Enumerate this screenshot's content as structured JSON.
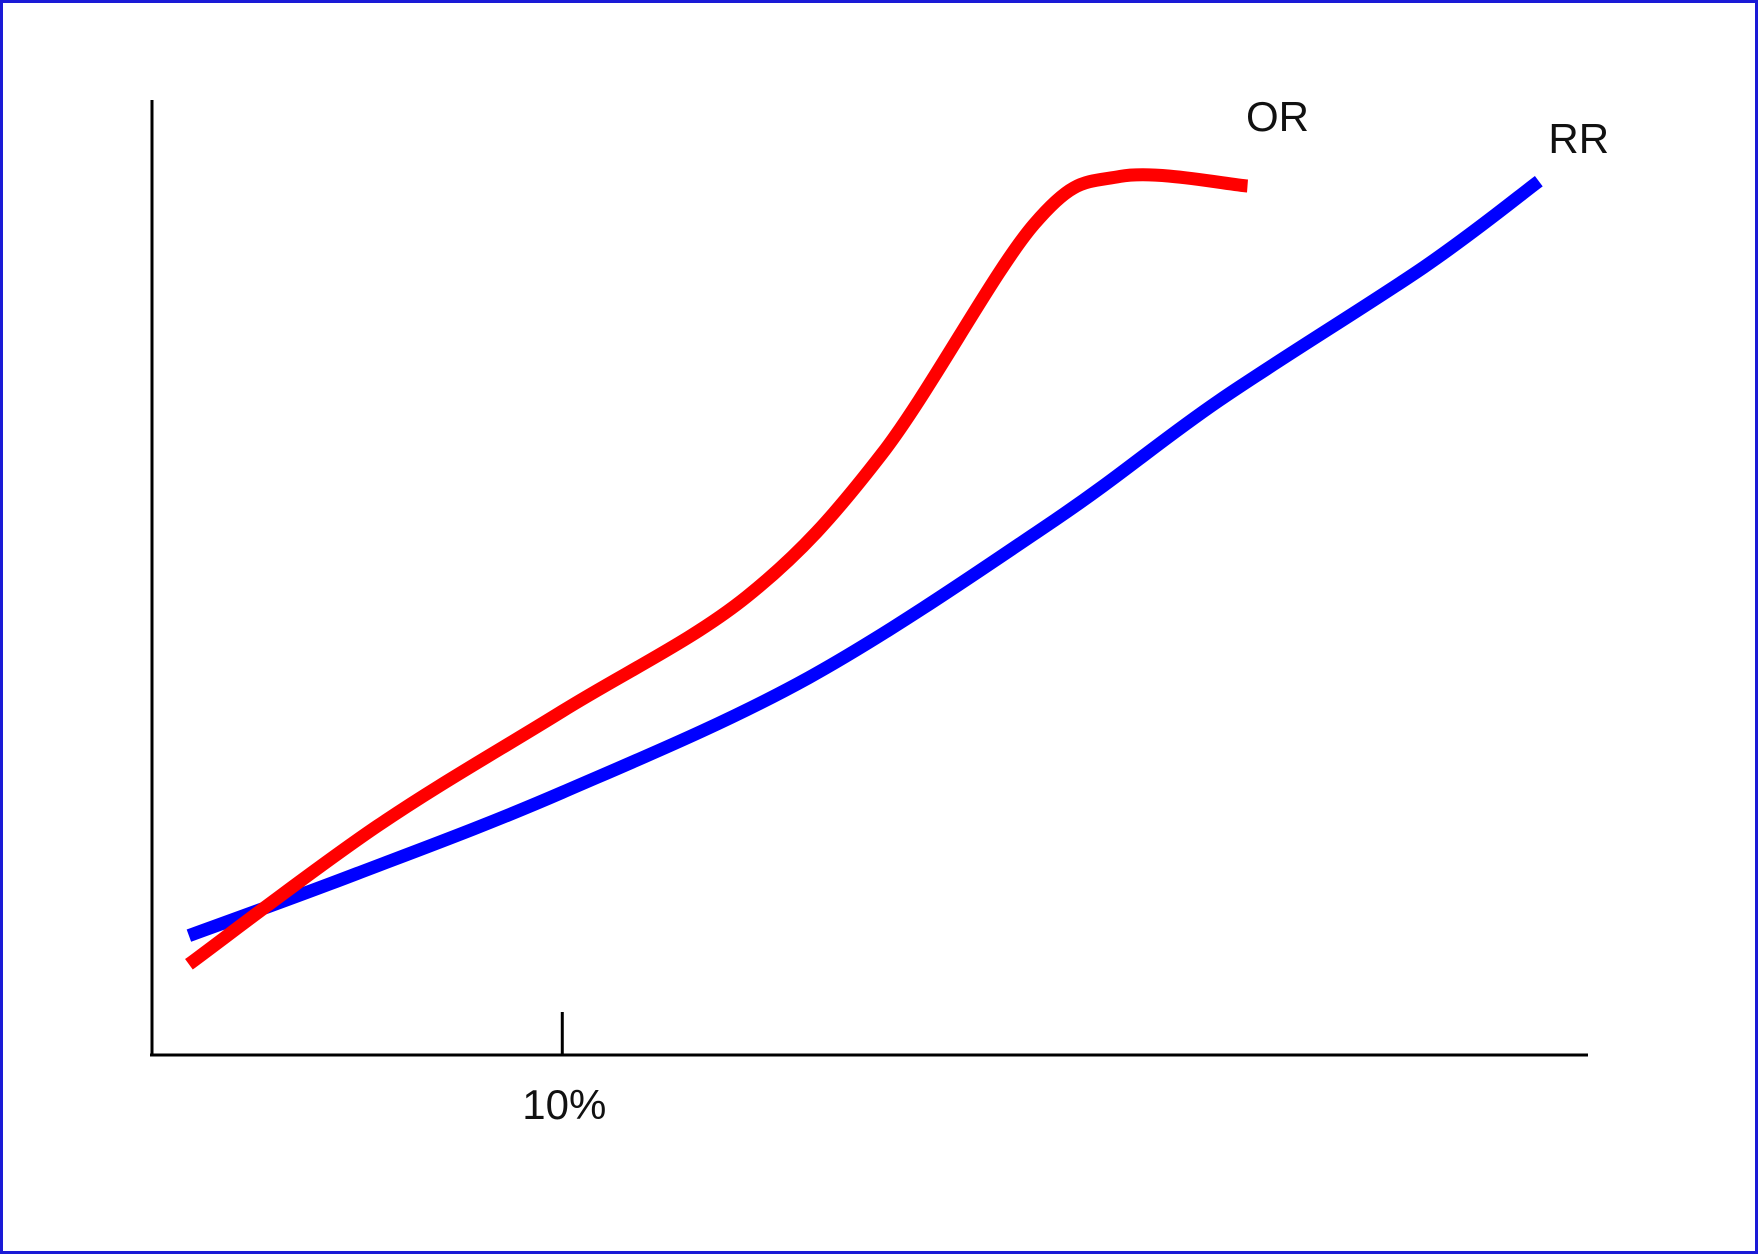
{
  "chart_data": {
    "type": "line",
    "title": "",
    "xlabel": "",
    "ylabel": "",
    "grid": false,
    "x_tick": {
      "value": 10,
      "label": "10%"
    },
    "xlim": [
      0,
      35
    ],
    "ylim": [
      0,
      10
    ],
    "series": [
      {
        "name": "OR",
        "color": "#ff0000",
        "x": [
          0.9,
          5.5,
          10,
          14.5,
          17.8,
          21.5,
          23.6,
          26.7
        ],
        "y": [
          0.95,
          2.4,
          3.6,
          4.8,
          6.3,
          8.7,
          9.2,
          9.1
        ]
      },
      {
        "name": "RR",
        "color": "#0000ff",
        "x": [
          0.9,
          5,
          10,
          16,
          22,
          26,
          31,
          33.8
        ],
        "y": [
          1.25,
          1.9,
          2.75,
          3.95,
          5.6,
          6.85,
          8.25,
          9.15
        ]
      }
    ]
  },
  "colors": {
    "frame_border": "#1a1ad6",
    "axis": "#000000"
  }
}
